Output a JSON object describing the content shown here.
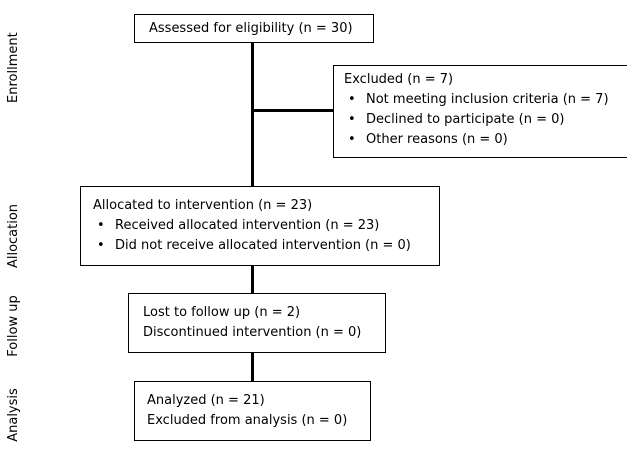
{
  "stages": {
    "enrollment": "Enrollment",
    "allocation": "Allocation",
    "follow_up": "Follow up",
    "analysis": "Analysis"
  },
  "assessed": {
    "title": "Assessed for eligibility (n = 30)"
  },
  "excluded": {
    "title": "Excluded (n = 7)",
    "items": [
      "Not meeting inclusion criteria (n = 7)",
      "Declined to participate (n = 0)",
      "Other reasons (n = 0)"
    ]
  },
  "allocated": {
    "title": "Allocated to intervention (n = 23)",
    "items": [
      "Received allocated intervention (n = 23)",
      "Did not receive allocated intervention (n = 0)"
    ]
  },
  "followup": {
    "lines": [
      "Lost to follow up (n = 2)",
      "Discontinued intervention (n = 0)"
    ]
  },
  "analysis": {
    "lines": [
      "Analyzed (n = 21)",
      "Excluded from analysis (n = 0)"
    ]
  }
}
